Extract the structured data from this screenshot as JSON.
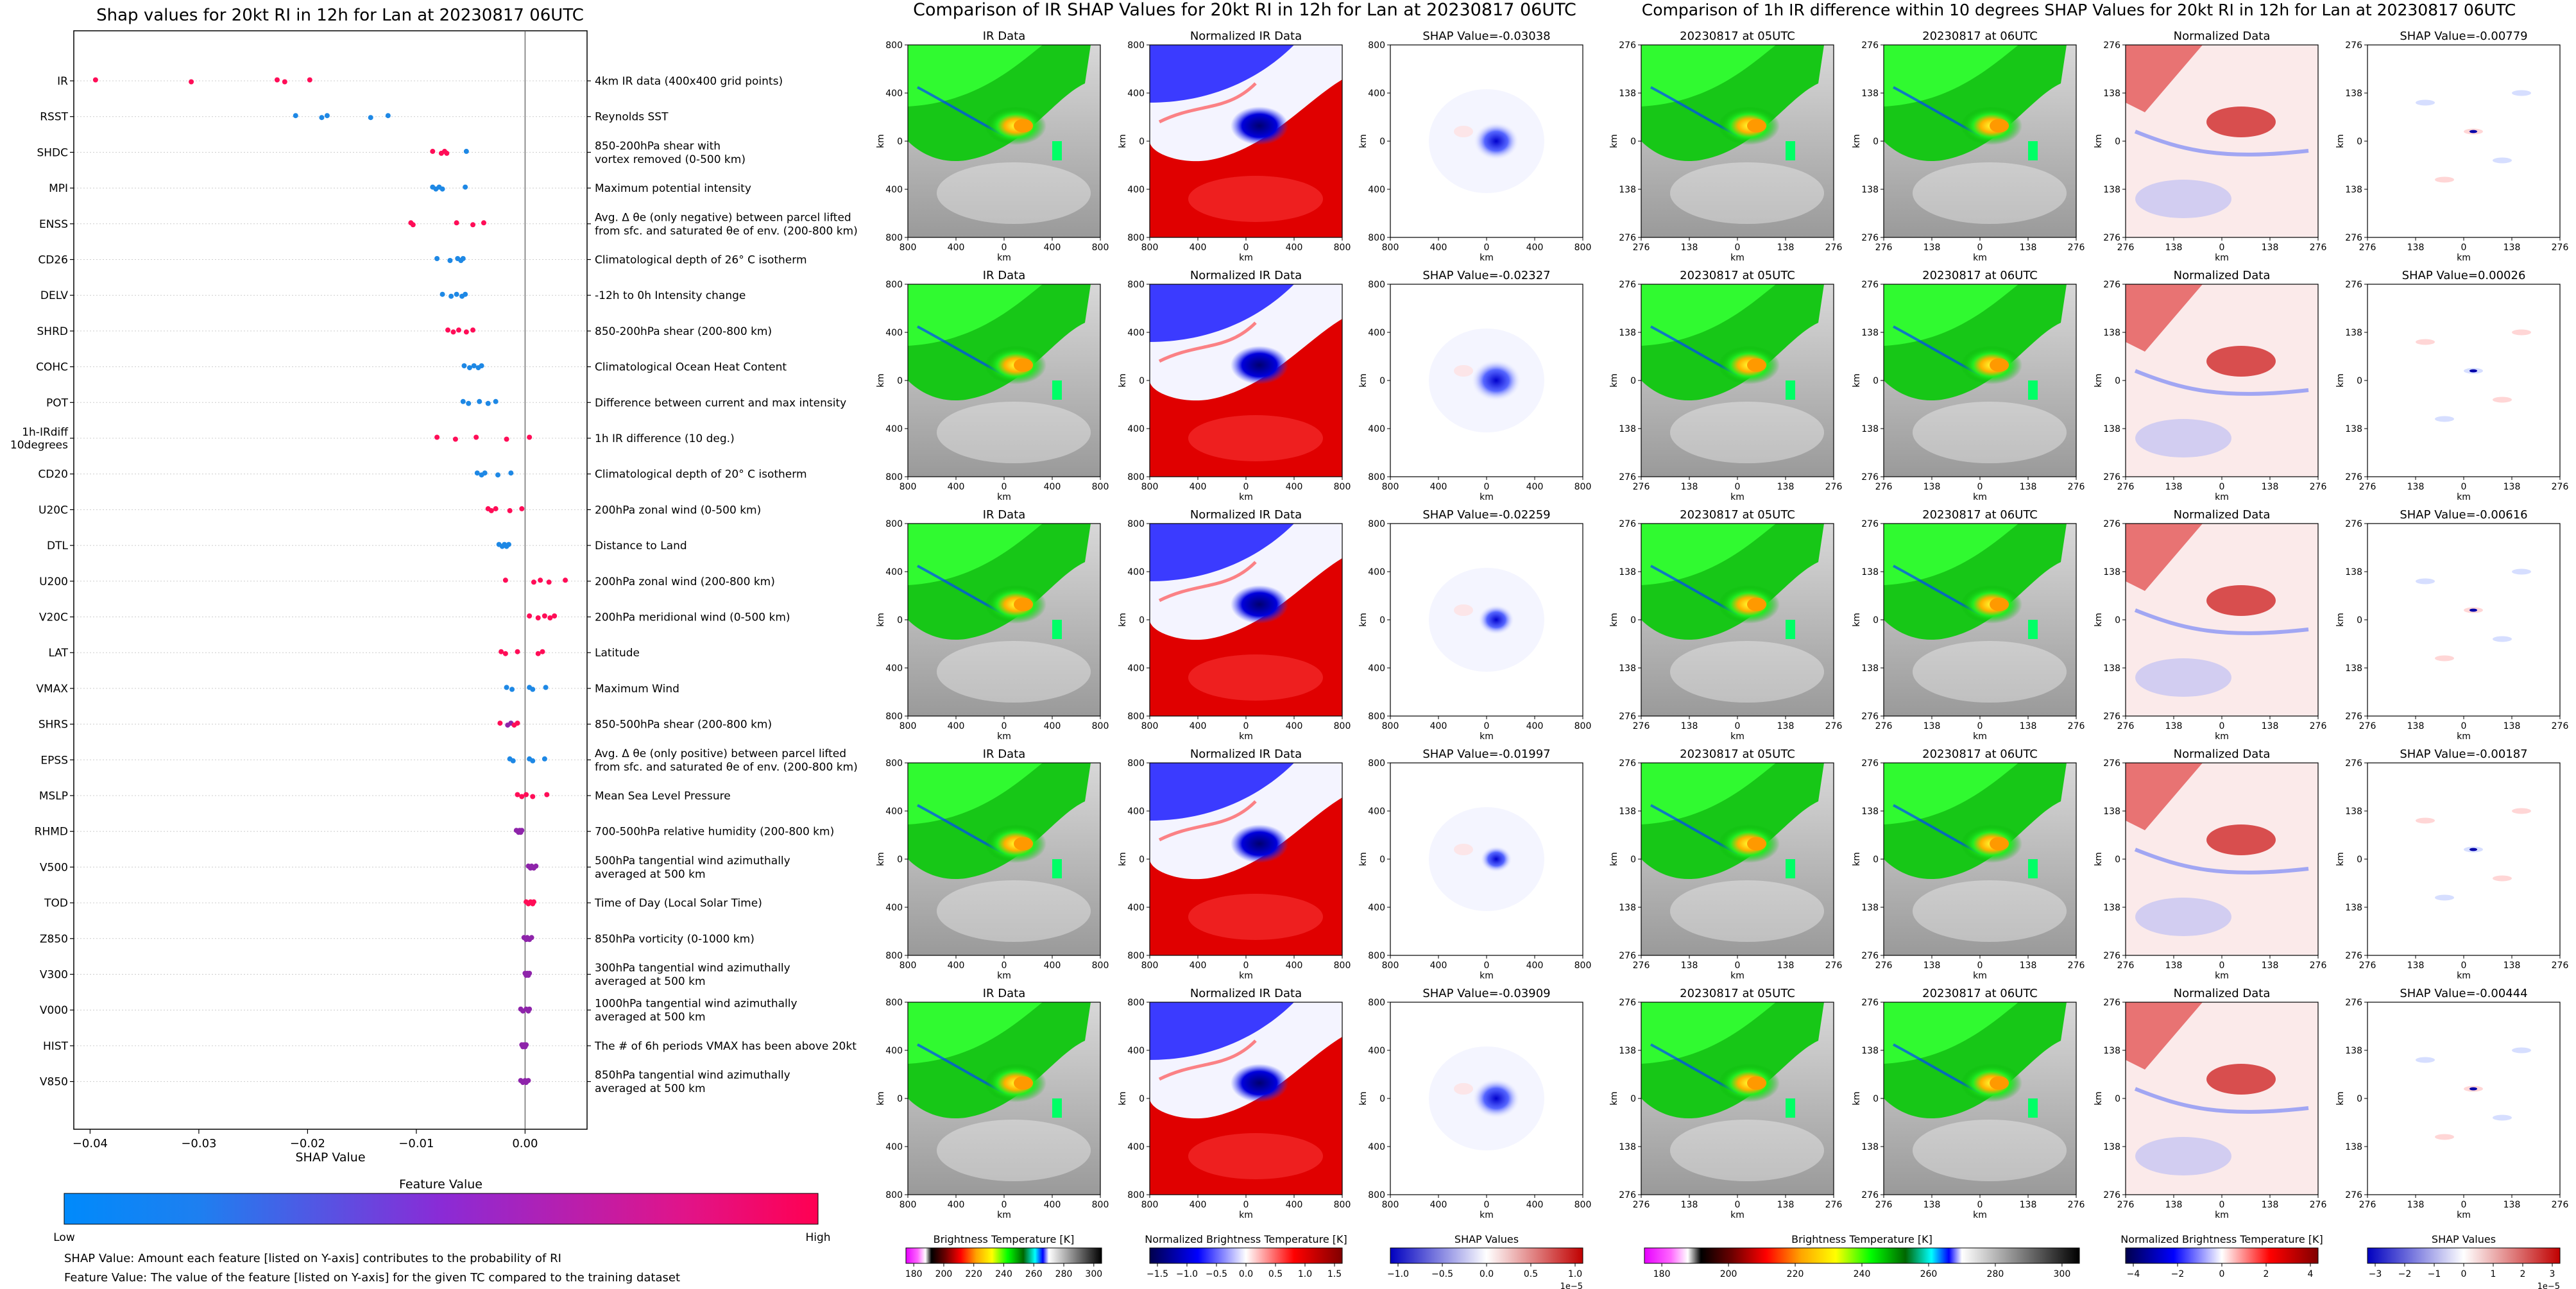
{
  "shap_panel": {
    "title": "Shap values for 20kt RI in 12h for Lan at 20230817 06UTC",
    "xlabel": "SHAP Value",
    "xticks": [
      "−0.04",
      "−0.03",
      "−0.02",
      "−0.01",
      "0.00"
    ],
    "colorbar_title": "Feature Value",
    "colorbar_low": "Low",
    "colorbar_high": "High",
    "note_shap": "SHAP Value: Amount each feature [listed on Y-axis] contributes to the probability of RI",
    "note_feature": "Feature Value: The value of the feature [listed on Y-axis] for the given TC compared to the training dataset",
    "colors": {
      "low": "#1e88e5",
      "mid": "#8e24aa",
      "high": "#ff0d57"
    }
  },
  "chart_data": [
    {
      "type": "scatter",
      "title": "Shap values for 20kt RI in 12h for Lan at 20230817 06UTC",
      "xlabel": "SHAP Value",
      "xlim": [
        -0.0415,
        0.0057
      ],
      "features": [
        {
          "name": "IR",
          "desc": [
            "4km IR data (400x400 grid points)"
          ],
          "points": [
            [
              -0.0395,
              1
            ],
            [
              -0.0307,
              1
            ],
            [
              -0.0228,
              1
            ],
            [
              -0.0221,
              1
            ],
            [
              -0.0198,
              1
            ]
          ]
        },
        {
          "name": "RSST",
          "desc": [
            "Reynolds SST"
          ],
          "points": [
            [
              -0.0211,
              0
            ],
            [
              -0.0187,
              0
            ],
            [
              -0.0182,
              0
            ],
            [
              -0.0142,
              0
            ],
            [
              -0.0126,
              0
            ]
          ]
        },
        {
          "name": "SHDC",
          "desc": [
            "850-200hPa shear with",
            "vortex removed (0-500 km)"
          ],
          "points": [
            [
              -0.0085,
              1
            ],
            [
              -0.0077,
              1
            ],
            [
              -0.0074,
              1
            ],
            [
              -0.0072,
              1
            ],
            [
              -0.0054,
              0
            ]
          ]
        },
        {
          "name": "MPI",
          "desc": [
            "Maximum potential intensity"
          ],
          "points": [
            [
              -0.0085,
              0
            ],
            [
              -0.0082,
              0
            ],
            [
              -0.0079,
              0
            ],
            [
              -0.0076,
              0
            ],
            [
              -0.0055,
              0
            ]
          ]
        },
        {
          "name": "ENSS",
          "desc": [
            "Avg. Δ θe (only negative) between parcel lifted",
            "from sfc. and saturated θe of env. (200-800 km)"
          ],
          "points": [
            [
              -0.0105,
              1
            ],
            [
              -0.0103,
              1
            ],
            [
              -0.0063,
              1
            ],
            [
              -0.0048,
              1
            ],
            [
              -0.0038,
              1
            ]
          ]
        },
        {
          "name": "CD26",
          "desc": [
            "Climatological depth of 26° C isotherm"
          ],
          "points": [
            [
              -0.0081,
              0
            ],
            [
              -0.0069,
              0
            ],
            [
              -0.0062,
              0
            ],
            [
              -0.0059,
              0
            ],
            [
              -0.0057,
              0
            ]
          ]
        },
        {
          "name": "DELV",
          "desc": [
            "-12h to 0h Intensity change"
          ],
          "points": [
            [
              -0.0076,
              0
            ],
            [
              -0.0068,
              0
            ],
            [
              -0.0063,
              0
            ],
            [
              -0.0058,
              0
            ],
            [
              -0.0055,
              0
            ]
          ]
        },
        {
          "name": "SHRD",
          "desc": [
            "850-200hPa shear (200-800 km)"
          ],
          "points": [
            [
              -0.0071,
              1
            ],
            [
              -0.0066,
              1
            ],
            [
              -0.0061,
              1
            ],
            [
              -0.0054,
              1
            ],
            [
              -0.0048,
              1
            ]
          ]
        },
        {
          "name": "COHC",
          "desc": [
            "Climatological Ocean Heat Content"
          ],
          "points": [
            [
              -0.0056,
              0
            ],
            [
              -0.0051,
              0
            ],
            [
              -0.0047,
              0
            ],
            [
              -0.0043,
              0
            ],
            [
              -0.004,
              0
            ]
          ]
        },
        {
          "name": "POT",
          "desc": [
            "Difference between current and max intensity"
          ],
          "points": [
            [
              -0.0057,
              0
            ],
            [
              -0.0052,
              0
            ],
            [
              -0.0042,
              0
            ],
            [
              -0.0034,
              0
            ],
            [
              -0.0027,
              0
            ]
          ]
        },
        {
          "name": "1h-IRdiff\n10degrees",
          "desc": [
            "1h IR difference (10 deg.)"
          ],
          "points": [
            [
              -0.0081,
              1
            ],
            [
              -0.0064,
              1
            ],
            [
              -0.0045,
              1
            ],
            [
              -0.0017,
              1
            ],
            [
              0.0004,
              1
            ]
          ]
        },
        {
          "name": "CD20",
          "desc": [
            "Climatological depth of 20° C isotherm"
          ],
          "points": [
            [
              -0.0044,
              0
            ],
            [
              -0.004,
              0
            ],
            [
              -0.0037,
              0
            ],
            [
              -0.0025,
              0
            ],
            [
              -0.0013,
              0
            ]
          ]
        },
        {
          "name": "U20C",
          "desc": [
            "200hPa zonal wind (0-500 km)"
          ],
          "points": [
            [
              -0.0034,
              1
            ],
            [
              -0.0031,
              1
            ],
            [
              -0.0027,
              1
            ],
            [
              -0.0014,
              1
            ],
            [
              -0.0003,
              1
            ]
          ]
        },
        {
          "name": "DTL",
          "desc": [
            "Distance to Land"
          ],
          "points": [
            [
              -0.0024,
              0
            ],
            [
              -0.0021,
              0
            ],
            [
              -0.0019,
              0
            ],
            [
              -0.0017,
              0
            ],
            [
              -0.0015,
              0
            ]
          ]
        },
        {
          "name": "U200",
          "desc": [
            "200hPa zonal wind (200-800 km)"
          ],
          "points": [
            [
              -0.0018,
              1
            ],
            [
              0.0008,
              1
            ],
            [
              0.0014,
              1
            ],
            [
              0.0022,
              1
            ],
            [
              0.0037,
              1
            ]
          ]
        },
        {
          "name": "V20C",
          "desc": [
            "200hPa meridional wind (0-500 km)"
          ],
          "points": [
            [
              0.0004,
              1
            ],
            [
              0.0012,
              1
            ],
            [
              0.0018,
              1
            ],
            [
              0.0023,
              1
            ],
            [
              0.0027,
              1
            ]
          ]
        },
        {
          "name": "LAT",
          "desc": [
            "Latitude"
          ],
          "points": [
            [
              -0.0022,
              1
            ],
            [
              -0.0018,
              1
            ],
            [
              -0.0007,
              1
            ],
            [
              0.0012,
              1
            ],
            [
              0.0016,
              1
            ]
          ]
        },
        {
          "name": "VMAX",
          "desc": [
            "Maximum Wind"
          ],
          "points": [
            [
              -0.0017,
              0
            ],
            [
              -0.0012,
              0
            ],
            [
              0.0004,
              0
            ],
            [
              0.0007,
              0
            ],
            [
              0.0019,
              0
            ]
          ]
        },
        {
          "name": "SHRS",
          "desc": [
            "850-500hPa shear (200-800 km)"
          ],
          "points": [
            [
              -0.0023,
              1
            ],
            [
              -0.0016,
              0.5
            ],
            [
              -0.0013,
              0.5
            ],
            [
              -0.001,
              1
            ],
            [
              -0.0007,
              1
            ]
          ]
        },
        {
          "name": "EPSS",
          "desc": [
            "Avg. Δ θe (only positive) between parcel lifted",
            "from sfc. and saturated θe of env. (200-800 km)"
          ],
          "points": [
            [
              -0.0014,
              0
            ],
            [
              -0.0011,
              0
            ],
            [
              0.0004,
              0
            ],
            [
              0.0007,
              0
            ],
            [
              0.0018,
              0
            ]
          ]
        },
        {
          "name": "MSLP",
          "desc": [
            "Mean Sea Level Pressure"
          ],
          "points": [
            [
              -0.0007,
              1
            ],
            [
              -0.0003,
              1
            ],
            [
              0.0001,
              1
            ],
            [
              0.0007,
              1
            ],
            [
              0.002,
              1
            ]
          ]
        },
        {
          "name": "RHMD",
          "desc": [
            "700-500hPa relative humidity (200-800 km)"
          ],
          "points": [
            [
              -0.0008,
              0.5
            ],
            [
              -0.0006,
              0.5
            ],
            [
              -0.0005,
              0.5
            ],
            [
              -0.0004,
              0.5
            ],
            [
              -0.0003,
              0.5
            ]
          ]
        },
        {
          "name": "V500",
          "desc": [
            "500hPa tangential wind azimuthally",
            "averaged at 500 km"
          ],
          "points": [
            [
              0.0003,
              0.5
            ],
            [
              0.0005,
              0.5
            ],
            [
              0.0006,
              0.5
            ],
            [
              0.0008,
              0.5
            ],
            [
              0.001,
              0.5
            ]
          ]
        },
        {
          "name": "TOD",
          "desc": [
            "Time of Day (Local Solar Time)"
          ],
          "points": [
            [
              0.0001,
              1
            ],
            [
              0.0003,
              1
            ],
            [
              0.0005,
              1
            ],
            [
              0.0007,
              1
            ],
            [
              0.0008,
              1
            ]
          ]
        },
        {
          "name": "Z850",
          "desc": [
            "850hPa vorticity (0-1000 km)"
          ],
          "points": [
            [
              -0.0001,
              0.5
            ],
            [
              0.0001,
              0.5
            ],
            [
              0.0002,
              0.5
            ],
            [
              0.0004,
              0.5
            ],
            [
              0.0006,
              0.5
            ]
          ]
        },
        {
          "name": "V300",
          "desc": [
            "300hPa tangential wind azimuthally",
            "averaged at 500 km"
          ],
          "points": [
            [
              0.0,
              0.5
            ],
            [
              0.0001,
              0.5
            ],
            [
              0.0002,
              0.5
            ],
            [
              0.0003,
              0.5
            ],
            [
              0.0004,
              0.5
            ]
          ]
        },
        {
          "name": "V000",
          "desc": [
            "1000hPa tangential wind azimuthally",
            "averaged at 500 km"
          ],
          "points": [
            [
              -0.0004,
              0.5
            ],
            [
              -0.0002,
              0.5
            ],
            [
              0.0001,
              0.5
            ],
            [
              0.0003,
              0.5
            ],
            [
              0.0004,
              0.5
            ]
          ]
        },
        {
          "name": "HIST",
          "desc": [
            "The # of 6h periods VMAX has been above 20kt"
          ],
          "points": [
            [
              -0.0003,
              0.5
            ],
            [
              -0.0002,
              0.5
            ],
            [
              -0.0001,
              0.5
            ],
            [
              0.0,
              0.5
            ],
            [
              0.0001,
              0.5
            ]
          ]
        },
        {
          "name": "V850",
          "desc": [
            "850hPa tangential wind azimuthally",
            "averaged at 500 km"
          ],
          "points": [
            [
              -0.0004,
              0.5
            ],
            [
              -0.0002,
              0.5
            ],
            [
              0.0,
              0.5
            ],
            [
              0.0001,
              0.5
            ],
            [
              0.0003,
              0.5
            ]
          ]
        }
      ]
    },
    {
      "type": "heatmap",
      "title": "Comparison of IR SHAP Values for 20kt RI in 12h for Lan at 20230817 06UTC",
      "columns": [
        "IR Data",
        "Normalized IR Data",
        "SHAP Value"
      ],
      "shap_values": [
        "SHAP Value=-0.03038",
        "SHAP Value=-0.02327",
        "SHAP Value=-0.02259",
        "SHAP Value=-0.01997",
        "SHAP Value=-0.03909"
      ],
      "yticks": [
        "800",
        "400",
        "0",
        "400",
        "800"
      ],
      "xticks": [
        "800",
        "400",
        "0",
        "400",
        "800"
      ],
      "axis_unit": "km",
      "colorbars": [
        {
          "label": "Brightness Temperature [K]",
          "ticks": [
            "180",
            "200",
            "220",
            "240",
            "260",
            "280",
            "300"
          ]
        },
        {
          "label": "Normalized Brightness Temperature [K]",
          "ticks": [
            "−1.5",
            "−1.0",
            "−0.5",
            "0.0",
            "0.5",
            "1.0",
            "1.5"
          ]
        },
        {
          "label": "SHAP Values",
          "ticks": [
            "−1.0",
            "−0.5",
            "0.0",
            "0.5",
            "1.0"
          ],
          "exponent": "1e−5"
        }
      ]
    },
    {
      "type": "heatmap",
      "title": "Comparison of 1h IR difference within 10 degrees SHAP Values for 20kt RI in 12h for Lan at 20230817 06UTC",
      "columns": [
        "20230817 at 05UTC",
        "20230817 at 06UTC",
        "Normalized Data",
        "SHAP Value"
      ],
      "shap_values": [
        "SHAP Value=-0.00779",
        "SHAP Value=0.00026",
        "SHAP Value=-0.00616",
        "SHAP Value=-0.00187",
        "SHAP Value=-0.00444"
      ],
      "yticks": [
        "276",
        "138",
        "0",
        "138",
        "276"
      ],
      "xticks": [
        "276",
        "138",
        "0",
        "138",
        "276"
      ],
      "axis_unit": "km",
      "colorbars": [
        {
          "label": "Brightness Temperature [K]",
          "ticks": [
            "180",
            "200",
            "220",
            "240",
            "260",
            "280",
            "300"
          ]
        },
        {
          "label": "Normalized Brightness Temperature [K]",
          "ticks": [
            "−4",
            "−2",
            "0",
            "2",
            "4"
          ]
        },
        {
          "label": "SHAP Values",
          "ticks": [
            "−3",
            "−2",
            "−1",
            "0",
            "1",
            "2",
            "3"
          ],
          "exponent": "1e−5"
        }
      ]
    }
  ]
}
